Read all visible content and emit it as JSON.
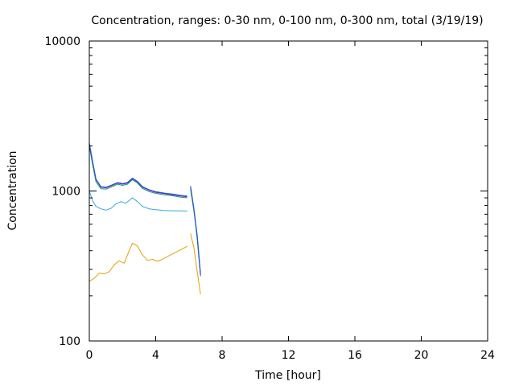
{
  "chart_data": {
    "type": "line",
    "title": "Concentration, ranges: 0-30 nm, 0-100 nm, 0-300 nm, total (3/19/19)",
    "xlabel": "Time [hour]",
    "ylabel": "Concentration",
    "xlim": [
      0,
      24
    ],
    "ylim": [
      100,
      10000
    ],
    "yscale": "log",
    "x_ticks": [
      0,
      4,
      8,
      12,
      16,
      20,
      24
    ],
    "y_ticks": [
      100,
      1000,
      10000
    ],
    "grid": false,
    "series": [
      {
        "color": "#e69f00",
        "points": [
          [
            0.0,
            250
          ],
          [
            0.3,
            262
          ],
          [
            0.6,
            283
          ],
          [
            0.9,
            280
          ],
          [
            1.2,
            290
          ],
          [
            1.5,
            322
          ],
          [
            1.8,
            342
          ],
          [
            2.1,
            330
          ],
          [
            2.4,
            400
          ],
          [
            2.6,
            448
          ],
          [
            2.9,
            430
          ],
          [
            3.2,
            375
          ],
          [
            3.5,
            345
          ],
          [
            3.8,
            350
          ],
          [
            4.1,
            340
          ],
          [
            4.4,
            350
          ],
          [
            4.7,
            365
          ],
          [
            5.0,
            380
          ],
          [
            5.3,
            395
          ],
          [
            5.6,
            410
          ],
          [
            5.9,
            428
          ],
          null,
          [
            6.1,
            520
          ],
          [
            6.3,
            420
          ],
          [
            6.5,
            290
          ],
          [
            6.7,
            205
          ]
        ]
      },
      {
        "color": "#35a7d9",
        "points": [
          [
            0.0,
            1000
          ],
          [
            0.2,
            860
          ],
          [
            0.4,
            790
          ],
          [
            0.7,
            760
          ],
          [
            1.0,
            745
          ],
          [
            1.3,
            765
          ],
          [
            1.6,
            820
          ],
          [
            1.9,
            850
          ],
          [
            2.2,
            830
          ],
          [
            2.6,
            900
          ],
          [
            2.9,
            850
          ],
          [
            3.2,
            790
          ],
          [
            3.6,
            760
          ],
          [
            4.0,
            750
          ],
          [
            4.5,
            742
          ],
          [
            5.0,
            738
          ],
          [
            5.5,
            736
          ],
          [
            5.9,
            735
          ],
          null,
          [
            6.1,
            1020
          ],
          [
            6.3,
            740
          ],
          [
            6.5,
            510
          ],
          [
            6.7,
            280
          ]
        ]
      },
      {
        "color": "#009e73",
        "points": [
          [
            0.0,
            1990
          ],
          [
            0.2,
            1500
          ],
          [
            0.4,
            1150
          ],
          [
            0.7,
            1035
          ],
          [
            1.0,
            1030
          ],
          [
            1.3,
            1060
          ],
          [
            1.7,
            1110
          ],
          [
            2.0,
            1090
          ],
          [
            2.3,
            1110
          ],
          [
            2.6,
            1190
          ],
          [
            2.9,
            1130
          ],
          [
            3.2,
            1040
          ],
          [
            3.6,
            990
          ],
          [
            4.0,
            965
          ],
          [
            4.5,
            945
          ],
          [
            5.0,
            930
          ],
          [
            5.5,
            910
          ],
          [
            5.9,
            900
          ],
          null,
          [
            6.1,
            1050
          ],
          [
            6.3,
            750
          ],
          [
            6.5,
            480
          ],
          [
            6.7,
            270
          ]
        ]
      },
      {
        "color": "#9400d3",
        "points": [
          [
            0.0,
            2070
          ],
          [
            0.2,
            1560
          ],
          [
            0.4,
            1190
          ],
          [
            0.7,
            1060
          ],
          [
            1.0,
            1050
          ],
          [
            1.3,
            1080
          ],
          [
            1.7,
            1130
          ],
          [
            2.0,
            1110
          ],
          [
            2.3,
            1130
          ],
          [
            2.6,
            1210
          ],
          [
            2.9,
            1150
          ],
          [
            3.2,
            1060
          ],
          [
            3.6,
            1010
          ],
          [
            4.0,
            980
          ],
          [
            4.5,
            960
          ],
          [
            5.0,
            945
          ],
          [
            5.5,
            925
          ],
          [
            5.9,
            915
          ],
          null,
          [
            6.1,
            1070
          ],
          [
            6.3,
            760
          ],
          [
            6.5,
            490
          ],
          [
            6.7,
            275
          ]
        ]
      },
      {
        "color": "#1565c0",
        "points": [
          [
            0.0,
            2100
          ],
          [
            0.2,
            1580
          ],
          [
            0.4,
            1200
          ],
          [
            0.7,
            1070
          ],
          [
            1.0,
            1060
          ],
          [
            1.3,
            1090
          ],
          [
            1.7,
            1140
          ],
          [
            2.0,
            1120
          ],
          [
            2.3,
            1140
          ],
          [
            2.6,
            1220
          ],
          [
            2.9,
            1160
          ],
          [
            3.2,
            1070
          ],
          [
            3.6,
            1020
          ],
          [
            4.0,
            990
          ],
          [
            4.5,
            970
          ],
          [
            5.0,
            955
          ],
          [
            5.5,
            935
          ],
          [
            5.9,
            925
          ],
          null,
          [
            6.1,
            1080
          ],
          [
            6.3,
            770
          ],
          [
            6.5,
            500
          ],
          [
            6.7,
            280
          ]
        ]
      }
    ]
  }
}
